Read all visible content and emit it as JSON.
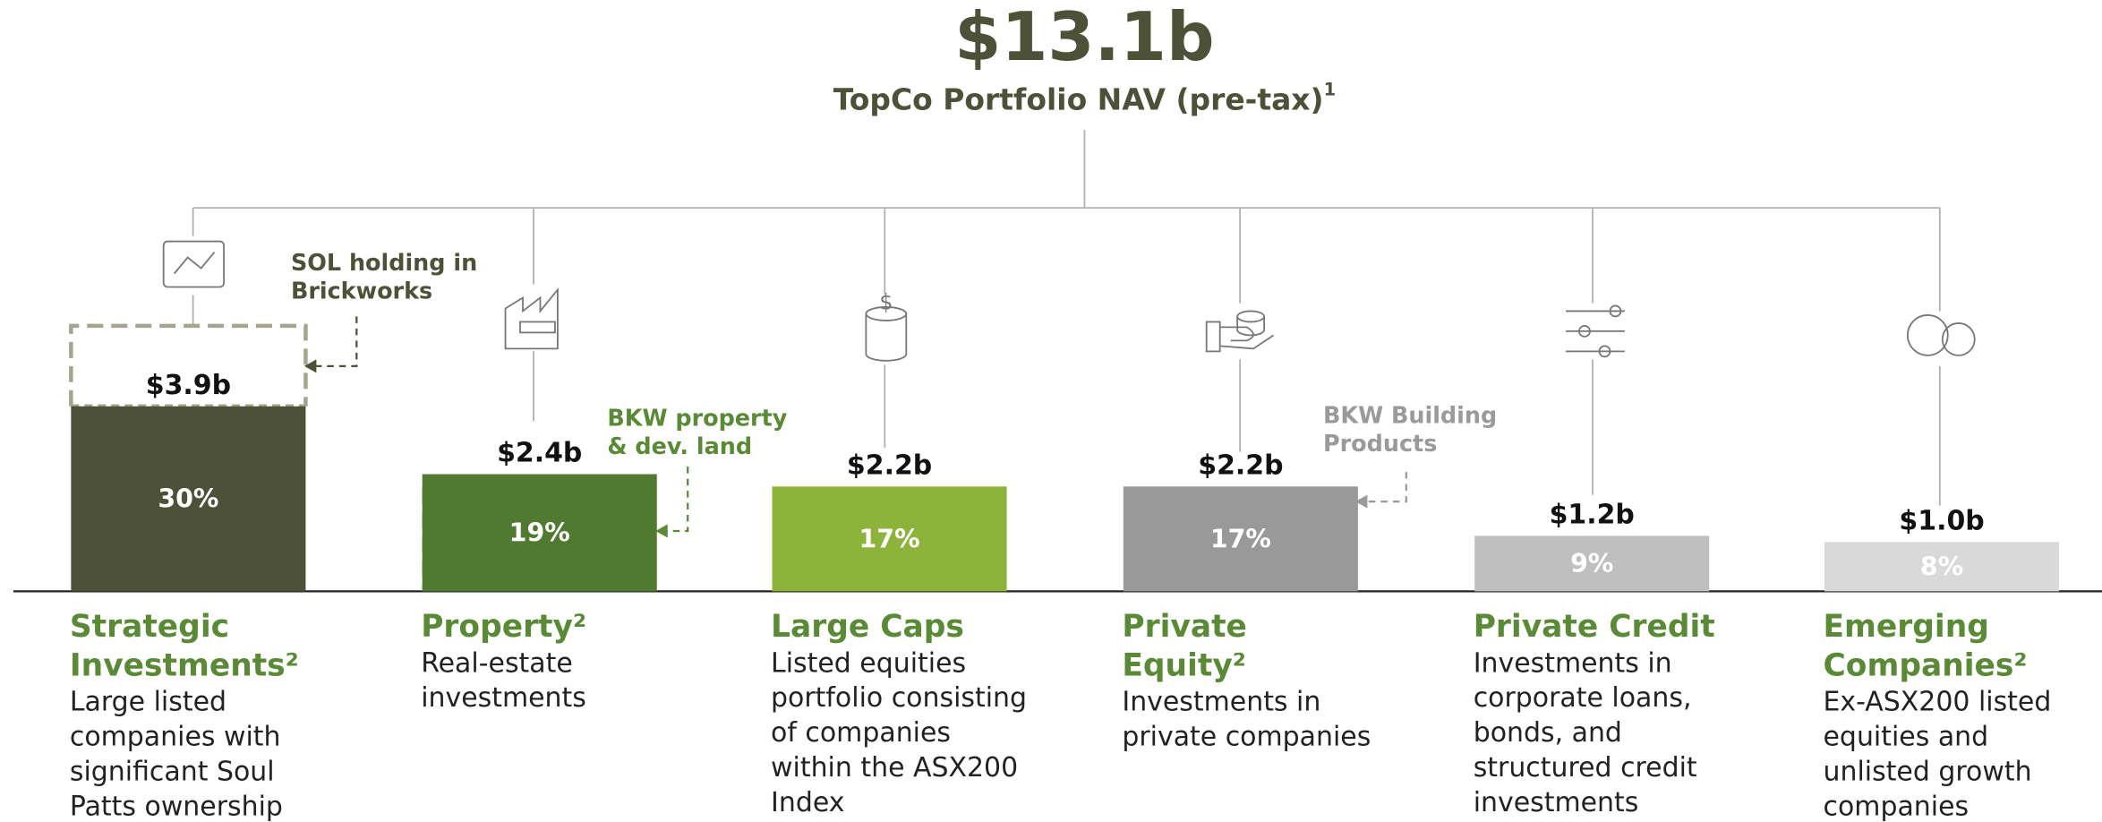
{
  "chart_data": {
    "type": "bar",
    "title": "$13.1b",
    "subtitle": "TopCo Portfolio NAV (pre-tax)",
    "subtitle_note": "1",
    "categories": [
      "Strategic Investments²",
      "Property²",
      "Large Caps",
      "Private Equity²",
      "Private Credit",
      "Emerging Companies²"
    ],
    "descriptions": [
      "Large listed companies with significant Soul Patts ownership",
      "Real-estate investments",
      "Listed equities portfolio consisting of companies within the ASX200 Index",
      "Investments in private companies",
      "Investments in corporate loans, bonds, and structured credit investments",
      "Ex-ASX200 listed equities and unlisted growth companies"
    ],
    "values": [
      3.9,
      2.4,
      2.2,
      2.2,
      1.2,
      1.0
    ],
    "value_labels": [
      "$3.9b",
      "$2.4b",
      "$2.2b",
      "$2.2b",
      "$1.2b",
      "$1.0b"
    ],
    "shares": [
      30,
      19,
      17,
      17,
      9,
      8
    ],
    "share_labels": [
      "30%",
      "19%",
      "17%",
      "17%",
      "9%",
      "8%"
    ],
    "colors": [
      "#4d5137",
      "#4f7a30",
      "#8db33a",
      "#999999",
      "#bfbfbf",
      "#d9d9d9"
    ],
    "annotations": [
      {
        "lines": [
          "SOL holding in",
          "Brickworks"
        ],
        "color": "#4d5137"
      },
      {
        "lines": [
          "BKW property",
          "& dev. land"
        ],
        "color": "#5a8a35"
      },
      {
        "lines": [
          "BKW Building",
          "Products"
        ],
        "color": "#9a9a9a"
      }
    ]
  }
}
